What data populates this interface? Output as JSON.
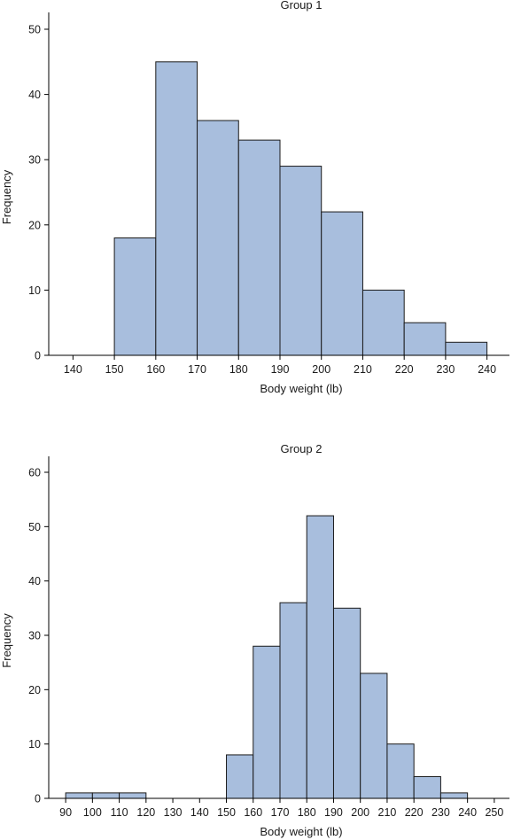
{
  "colors": {
    "bar_fill": "#a8bedd",
    "bar_edge": "#1a1a1a",
    "axis": "#000000",
    "text": "#1a1a1a"
  },
  "chart_data": [
    {
      "type": "bar",
      "histogram": true,
      "title": "Group 1",
      "xlabel": "Body weight (lb)",
      "ylabel": "Frequency",
      "xlim": [
        135,
        245
      ],
      "ylim": [
        0,
        50
      ],
      "xticks": [
        140,
        150,
        160,
        170,
        180,
        190,
        200,
        210,
        220,
        230,
        240
      ],
      "yticks": [
        0,
        10,
        20,
        30,
        40,
        50
      ],
      "bins": [
        {
          "start": 150,
          "end": 160,
          "count": 18
        },
        {
          "start": 160,
          "end": 170,
          "count": 45
        },
        {
          "start": 170,
          "end": 180,
          "count": 36
        },
        {
          "start": 180,
          "end": 190,
          "count": 33
        },
        {
          "start": 190,
          "end": 200,
          "count": 29
        },
        {
          "start": 200,
          "end": 210,
          "count": 22
        },
        {
          "start": 210,
          "end": 220,
          "count": 10
        },
        {
          "start": 220,
          "end": 230,
          "count": 5
        },
        {
          "start": 230,
          "end": 240,
          "count": 2
        }
      ],
      "grid": false
    },
    {
      "type": "bar",
      "histogram": true,
      "title": "Group 2",
      "xlabel": "Body weight (lb)",
      "ylabel": "Frequency",
      "xlim": [
        85,
        255
      ],
      "ylim": [
        0,
        60
      ],
      "xticks": [
        90,
        100,
        110,
        120,
        130,
        140,
        150,
        160,
        170,
        180,
        190,
        200,
        210,
        220,
        230,
        240,
        250
      ],
      "yticks": [
        0,
        10,
        20,
        30,
        40,
        50,
        60
      ],
      "bins": [
        {
          "start": 90,
          "end": 100,
          "count": 1
        },
        {
          "start": 100,
          "end": 110,
          "count": 1
        },
        {
          "start": 110,
          "end": 120,
          "count": 1
        },
        {
          "start": 150,
          "end": 160,
          "count": 8
        },
        {
          "start": 160,
          "end": 170,
          "count": 28
        },
        {
          "start": 170,
          "end": 180,
          "count": 36
        },
        {
          "start": 180,
          "end": 190,
          "count": 52
        },
        {
          "start": 190,
          "end": 200,
          "count": 35
        },
        {
          "start": 200,
          "end": 210,
          "count": 23
        },
        {
          "start": 210,
          "end": 220,
          "count": 10
        },
        {
          "start": 220,
          "end": 230,
          "count": 4
        },
        {
          "start": 230,
          "end": 240,
          "count": 1
        }
      ],
      "grid": false
    }
  ]
}
